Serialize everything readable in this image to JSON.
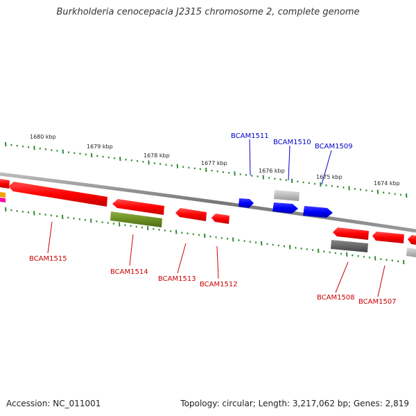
{
  "title": "Burkholderia cenocepacia J2315 chromosome 2, complete genome",
  "accession": "Accession: NC_011001",
  "summary": "Topology: circular; Length: 3,217,062 bp; Genes: 2,819",
  "scale_labels": [
    "1680 kbp",
    "1679 kbp",
    "1678 kbp",
    "1677 kbp",
    "1676 kbp",
    "1675 kbp",
    "1674 kbp"
  ],
  "genes": [
    {
      "label": "BCAM1515",
      "strand": "reverse",
      "color": "#ff0000",
      "label_color": "#cc0000"
    },
    {
      "label": "BCAM1514",
      "strand": "reverse",
      "color": "#6b8e23",
      "label_color": "#cc0000"
    },
    {
      "label": "BCAM1513",
      "strand": "reverse",
      "color": "#ff0000",
      "label_color": "#cc0000"
    },
    {
      "label": "BCAM1512",
      "strand": "reverse",
      "color": "#ff0000",
      "label_color": "#cc0000"
    },
    {
      "label": "BCAM1511",
      "strand": "forward",
      "color": "#0000ff",
      "label_color": "#0000cc"
    },
    {
      "label": "BCAM1510",
      "strand": "forward",
      "color": "#0000ff",
      "label_color": "#0000cc"
    },
    {
      "label": "BCAM1509",
      "strand": "forward",
      "color": "#0000ff",
      "label_color": "#0000cc"
    },
    {
      "label": "BCAM1508",
      "strand": "reverse",
      "color": "#ff0000",
      "label_color": "#cc0000"
    },
    {
      "label": "BCAM1507",
      "strand": "reverse",
      "color": "#ff0000",
      "label_color": "#cc0000"
    }
  ],
  "colors": {
    "backbone": "#888888",
    "tick": "#2e8b2e",
    "forward_gene": "#0000ff",
    "reverse_gene": "#ff0000",
    "other_gene": "#bbbbbb",
    "dark_gene": "#666666",
    "olive_gene": "#6b8e23"
  }
}
